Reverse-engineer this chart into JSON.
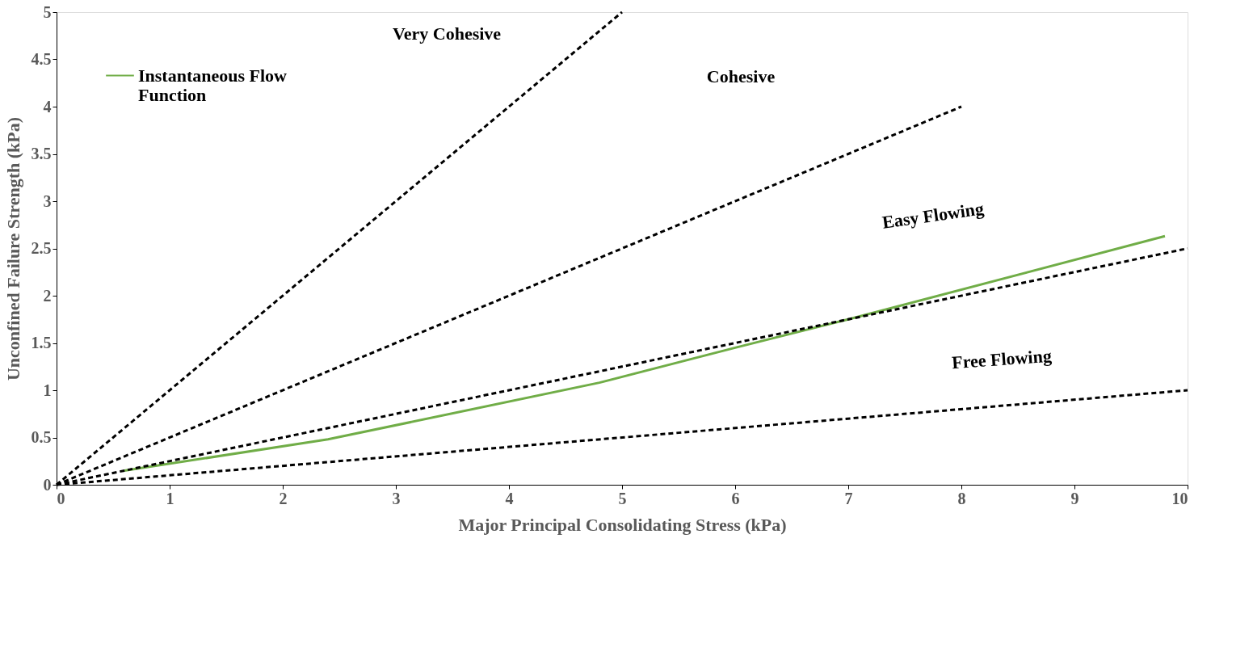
{
  "chart_data": {
    "type": "line",
    "xlabel": "Major Principal Consolidating Stress (kPa)",
    "ylabel": "Unconfined Failure Strength (kPa)",
    "xlim": [
      0,
      10
    ],
    "xticks": [
      0,
      1,
      2,
      3,
      4,
      5,
      6,
      7,
      8,
      9,
      10
    ],
    "ylim": [
      0,
      5
    ],
    "yticks": [
      0,
      0.5,
      1,
      1.5,
      2,
      2.5,
      3,
      3.5,
      4,
      4.5,
      5
    ],
    "grid": false,
    "legend": "top left",
    "marker": "none",
    "series": [
      {
        "name": "Instantaneous Flow Function",
        "color": "#70ad47",
        "line_style": "solid",
        "x": [
          0.6,
          2.4,
          4.8,
          6,
          7,
          9.8
        ],
        "values": [
          0.15,
          0.48,
          1.08,
          1.45,
          1.75,
          2.63
        ]
      },
      {
        "color": "#000000",
        "line_style": "dashed",
        "x": [
          0,
          5
        ],
        "values": [
          0,
          5
        ]
      },
      {
        "color": "#000000",
        "line_style": "dashed",
        "x": [
          0,
          8
        ],
        "values": [
          0,
          4
        ]
      },
      {
        "color": "#000000",
        "line_style": "dashed",
        "x": [
          0,
          10
        ],
        "values": [
          0,
          2.5
        ]
      },
      {
        "color": "#000000",
        "line_style": "dashed",
        "x": [
          0,
          10
        ],
        "values": [
          0,
          1
        ]
      }
    ],
    "annotations": [
      "Very Cohesive",
      "Cohesive",
      "Easy Flowing",
      "Free Flowing"
    ]
  }
}
